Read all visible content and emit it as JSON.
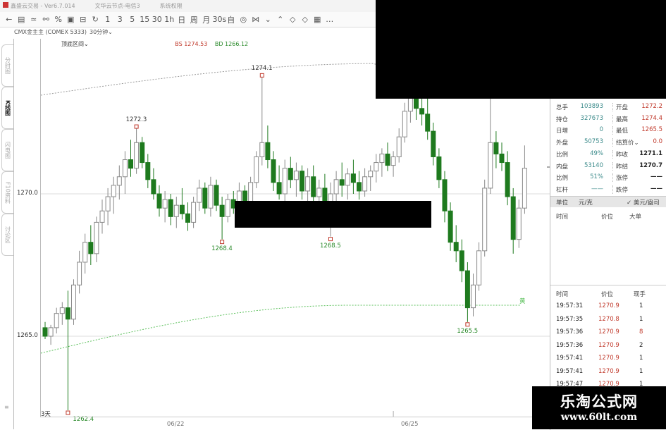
{
  "window": {
    "app_title": "鑫盛云交易",
    "version": "Ver6.7.014",
    "node": "文华云节点-电信3",
    "system": "系统权限"
  },
  "toolbar": {
    "icons": [
      "back-icon",
      "list-icon",
      "line-icon",
      "link-icon",
      "stats-icon",
      "chart-icon",
      "window-icon",
      "refresh-icon"
    ],
    "periods": [
      "1",
      "3",
      "5",
      "15",
      "30",
      "1h",
      "日",
      "周",
      "月",
      "30s",
      "自"
    ],
    "more_icons": [
      "◎",
      "⋈",
      "⌄",
      "⌃",
      "◇",
      "◇",
      "▦",
      "…"
    ]
  },
  "symbol": {
    "name": "CMX金主主 (COMEX 5333)",
    "period": "30分钟"
  },
  "sidebar": {
    "tabs": [
      "分时图",
      "K线图",
      "闪电图",
      "F10资料",
      "讨论区"
    ],
    "active": 1
  },
  "chart": {
    "indicator": "顶底区间",
    "bs": "BS 1274.53",
    "bd": "BD 1266.12",
    "yellow_tag": "黄",
    "footer_label": "3天",
    "colors": {
      "up": "#888888",
      "down": "#1e7a1e",
      "upper_band": "#999999",
      "lower_band": "#5bc05b"
    }
  },
  "chart_data": {
    "type": "candlestick",
    "ylim": [
      1262.2,
      1275.1
    ],
    "y_ticks": [
      "1270.0",
      "1265.0"
    ],
    "y_tick_values": [
      1270.0,
      1265.0
    ],
    "x_ticks": [
      "06/22",
      "06/25"
    ],
    "x_tick_index": [
      19,
      60
    ],
    "annotations": [
      {
        "text": "1272.3",
        "index": 16,
        "value": 1272.3
      },
      {
        "text": "1274.1",
        "index": 38,
        "value": 1274.1
      },
      {
        "text": "1268.4",
        "index": 31,
        "value": 1268.4
      },
      {
        "text": "1268.5",
        "index": 50,
        "value": 1268.5
      },
      {
        "text": "1265.5",
        "index": 74,
        "value": 1265.5
      },
      {
        "text": "1262.4",
        "index": 4,
        "value": 1262.4
      }
    ],
    "ohlc": [
      [
        1265.3,
        1265.5,
        1264.9,
        1265.0
      ],
      [
        1265.0,
        1265.4,
        1264.7,
        1265.3
      ],
      [
        1265.3,
        1266.0,
        1265.1,
        1265.8
      ],
      [
        1265.8,
        1266.2,
        1265.4,
        1266.0
      ],
      [
        1266.0,
        1266.6,
        1262.4,
        1265.6
      ],
      [
        1265.6,
        1267.0,
        1265.4,
        1266.8
      ],
      [
        1266.8,
        1268.0,
        1266.5,
        1267.6
      ],
      [
        1267.6,
        1268.6,
        1267.2,
        1268.3
      ],
      [
        1268.3,
        1268.9,
        1267.5,
        1267.9
      ],
      [
        1267.9,
        1269.2,
        1267.6,
        1269.0
      ],
      [
        1269.0,
        1269.8,
        1268.6,
        1269.4
      ],
      [
        1269.4,
        1270.2,
        1268.9,
        1269.9
      ],
      [
        1269.9,
        1270.6,
        1269.3,
        1270.3
      ],
      [
        1270.3,
        1271.0,
        1269.8,
        1270.6
      ],
      [
        1270.6,
        1271.5,
        1270.0,
        1271.2
      ],
      [
        1271.2,
        1271.9,
        1270.6,
        1270.9
      ],
      [
        1270.9,
        1272.3,
        1270.7,
        1271.8
      ],
      [
        1271.8,
        1272.0,
        1270.9,
        1271.1
      ],
      [
        1271.1,
        1271.4,
        1270.2,
        1270.5
      ],
      [
        1270.5,
        1270.9,
        1269.8,
        1270.0
      ],
      [
        1270.0,
        1270.3,
        1269.2,
        1269.5
      ],
      [
        1269.5,
        1270.1,
        1269.0,
        1269.8
      ],
      [
        1269.8,
        1270.0,
        1268.9,
        1269.2
      ],
      [
        1269.2,
        1269.9,
        1268.8,
        1269.6
      ],
      [
        1269.6,
        1270.2,
        1269.1,
        1269.3
      ],
      [
        1269.3,
        1269.7,
        1268.7,
        1269.0
      ],
      [
        1269.0,
        1269.9,
        1268.8,
        1269.7
      ],
      [
        1269.7,
        1270.5,
        1269.4,
        1270.2
      ],
      [
        1270.2,
        1270.4,
        1269.3,
        1269.5
      ],
      [
        1269.5,
        1270.6,
        1269.2,
        1270.3
      ],
      [
        1270.3,
        1270.5,
        1269.4,
        1269.6
      ],
      [
        1269.6,
        1269.9,
        1268.4,
        1269.2
      ],
      [
        1269.2,
        1270.0,
        1269.0,
        1269.8
      ],
      [
        1269.8,
        1270.1,
        1269.3,
        1269.5
      ],
      [
        1269.5,
        1270.4,
        1269.2,
        1270.1
      ],
      [
        1270.1,
        1270.3,
        1269.3,
        1269.6
      ],
      [
        1269.6,
        1270.6,
        1269.4,
        1270.4
      ],
      [
        1270.4,
        1271.5,
        1270.2,
        1271.3
      ],
      [
        1271.3,
        1274.1,
        1271.0,
        1271.8
      ],
      [
        1271.8,
        1272.4,
        1270.9,
        1271.2
      ],
      [
        1271.2,
        1271.5,
        1270.1,
        1270.4
      ],
      [
        1270.4,
        1271.0,
        1269.8,
        1270.0
      ],
      [
        1270.0,
        1271.2,
        1269.7,
        1270.9
      ],
      [
        1270.9,
        1271.3,
        1270.2,
        1270.5
      ],
      [
        1270.5,
        1271.1,
        1269.9,
        1270.8
      ],
      [
        1270.8,
        1271.0,
        1269.8,
        1270.1
      ],
      [
        1270.1,
        1270.9,
        1269.7,
        1270.6
      ],
      [
        1270.6,
        1271.0,
        1269.6,
        1269.9
      ],
      [
        1269.9,
        1270.5,
        1269.3,
        1270.2
      ],
      [
        1270.2,
        1270.7,
        1269.5,
        1269.7
      ],
      [
        1269.7,
        1270.4,
        1268.5,
        1270.0
      ],
      [
        1270.0,
        1270.8,
        1269.6,
        1270.5
      ],
      [
        1270.5,
        1271.1,
        1269.9,
        1270.3
      ],
      [
        1270.3,
        1270.9,
        1269.8,
        1270.7
      ],
      [
        1270.7,
        1271.2,
        1270.0,
        1270.4
      ],
      [
        1270.4,
        1270.8,
        1269.8,
        1270.1
      ],
      [
        1270.1,
        1270.9,
        1269.9,
        1270.6
      ],
      [
        1270.6,
        1271.0,
        1270.1,
        1270.8
      ],
      [
        1270.8,
        1271.4,
        1270.4,
        1271.1
      ],
      [
        1271.1,
        1271.6,
        1270.6,
        1271.4
      ],
      [
        1271.4,
        1271.8,
        1270.8,
        1271.0
      ],
      [
        1271.0,
        1271.5,
        1270.6,
        1271.3
      ],
      [
        1271.3,
        1272.3,
        1271.1,
        1272.0
      ],
      [
        1272.0,
        1273.2,
        1271.8,
        1272.9
      ],
      [
        1272.9,
        1274.4,
        1272.5,
        1273.6
      ],
      [
        1273.6,
        1274.0,
        1272.6,
        1273.0
      ],
      [
        1273.0,
        1273.5,
        1272.4,
        1272.8
      ],
      [
        1272.8,
        1273.8,
        1271.9,
        1272.2
      ],
      [
        1272.2,
        1272.5,
        1271.0,
        1271.3
      ],
      [
        1271.3,
        1271.6,
        1270.2,
        1270.5
      ],
      [
        1270.5,
        1270.8,
        1269.0,
        1269.4
      ],
      [
        1269.4,
        1269.7,
        1268.0,
        1268.3
      ],
      [
        1268.3,
        1268.9,
        1267.6,
        1268.0
      ],
      [
        1268.0,
        1268.4,
        1266.9,
        1267.3
      ],
      [
        1267.3,
        1267.6,
        1265.5,
        1266.0
      ],
      [
        1266.0,
        1267.2,
        1265.7,
        1266.8
      ],
      [
        1266.8,
        1268.3,
        1266.6,
        1268.0
      ],
      [
        1268.0,
        1270.5,
        1267.8,
        1270.2
      ],
      [
        1270.2,
        1273.5,
        1270.0,
        1271.8
      ],
      [
        1271.8,
        1272.2,
        1270.9,
        1271.4
      ],
      [
        1271.4,
        1271.8,
        1270.8,
        1271.1
      ],
      [
        1271.1,
        1271.5,
        1269.6,
        1269.9
      ],
      [
        1269.9,
        1270.2,
        1267.9,
        1268.4
      ],
      [
        1268.4,
        1269.8,
        1268.1,
        1269.5
      ],
      [
        1269.5,
        1271.7,
        1269.3,
        1270.9
      ]
    ]
  },
  "quote": {
    "rows": [
      {
        "l1": "总手",
        "v1": "103893",
        "l2": "开盘",
        "v2": "1272.2"
      },
      {
        "l1": "持仓",
        "v1": "327673",
        "l2": "最高",
        "v2": "1274.4"
      },
      {
        "l1": "日增",
        "v1": "0",
        "l2": "最低",
        "v2": "1265.5"
      },
      {
        "l1": "外盘",
        "v1": "50753",
        "l2": "结算价⌄",
        "v2": "0.0"
      },
      {
        "l1": "比例",
        "v1": "49%",
        "l2": "昨收",
        "v2": "1271.1"
      },
      {
        "l1": "内盘",
        "v1": "53140",
        "l2": "昨结",
        "v2": "1270.7"
      },
      {
        "l1": "比例",
        "v1": "51%",
        "l2": "涨停",
        "v2": "——"
      },
      {
        "l1": "杠杆",
        "v1": "——",
        "l2": "跌停",
        "v2": "——"
      }
    ],
    "unit_label": "单位",
    "unit_value": "元/克",
    "unit_alt": "✓ 美元/盎司",
    "big_head": [
      "时间",
      "价位",
      "大单"
    ]
  },
  "ticks": {
    "head": [
      "时间",
      "价位",
      "现手"
    ],
    "rows": [
      [
        "19:57:31",
        "1270.9",
        "1"
      ],
      [
        "19:57:35",
        "1270.8",
        "1"
      ],
      [
        "19:57:36",
        "1270.9",
        "8"
      ],
      [
        "19:57:36",
        "1270.9",
        "2"
      ],
      [
        "19:57:41",
        "1270.9",
        "1"
      ],
      [
        "19:57:41",
        "1270.9",
        "1"
      ],
      [
        "19:57:47",
        "1270.9",
        "1"
      ]
    ]
  },
  "watermark": {
    "line1": "乐淘公式网",
    "line2": "www.60lt.com"
  }
}
